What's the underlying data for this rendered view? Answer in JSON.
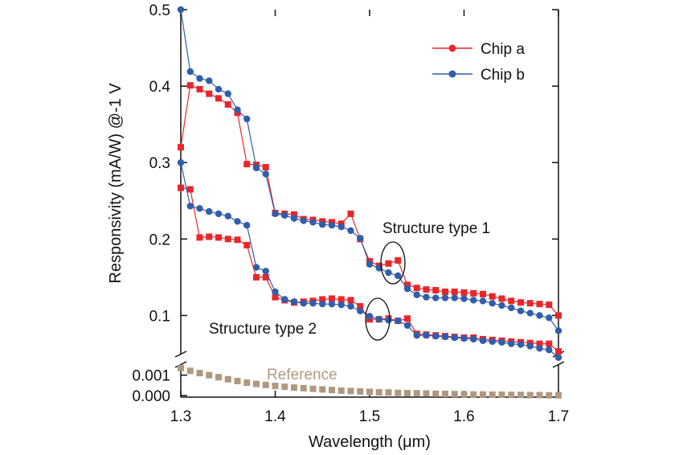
{
  "chart_data": {
    "type": "line",
    "xlabel": "Wavelength (μm)",
    "ylabel": "Responsivity (mA/W) @-1 V",
    "xlim": [
      1.3,
      1.7
    ],
    "ylim_upper": [
      0.05,
      0.5
    ],
    "ylim_lower": [
      0.0,
      0.0015
    ],
    "axis_break": "y",
    "x_ticks": [
      "1.3",
      "1.4",
      "1.5",
      "1.6",
      "1.7"
    ],
    "x_tick_values": [
      1.3,
      1.4,
      1.5,
      1.6,
      1.7
    ],
    "y_ticks_upper": [
      "0.1",
      "0.2",
      "0.3",
      "0.4",
      "0.5"
    ],
    "y_tick_values_upper": [
      0.1,
      0.2,
      0.3,
      0.4,
      0.5
    ],
    "y_ticks_lower": [
      "0.000",
      "0.001"
    ],
    "y_tick_values_lower": [
      0.0,
      0.001
    ],
    "legend_position": "top-right",
    "x": [
      1.3,
      1.31,
      1.32,
      1.33,
      1.34,
      1.35,
      1.36,
      1.37,
      1.38,
      1.39,
      1.4,
      1.41,
      1.42,
      1.43,
      1.44,
      1.45,
      1.46,
      1.47,
      1.48,
      1.49,
      1.5,
      1.51,
      1.52,
      1.53,
      1.54,
      1.55,
      1.56,
      1.57,
      1.58,
      1.59,
      1.6,
      1.61,
      1.62,
      1.63,
      1.64,
      1.65,
      1.66,
      1.67,
      1.68,
      1.69,
      1.7
    ],
    "series": [
      {
        "name": "Chip a",
        "group": "Structure type 1",
        "color": "#e8262a",
        "values": [
          0.32,
          0.401,
          0.396,
          0.39,
          0.384,
          0.376,
          0.365,
          0.298,
          0.297,
          0.294,
          0.234,
          0.233,
          0.232,
          0.226,
          0.225,
          0.223,
          0.222,
          0.22,
          0.233,
          0.2,
          0.171,
          0.165,
          0.168,
          0.172,
          0.14,
          0.136,
          0.134,
          0.133,
          0.131,
          0.131,
          0.13,
          0.129,
          0.128,
          0.125,
          0.122,
          0.119,
          0.117,
          0.116,
          0.115,
          0.114,
          0.1
        ]
      },
      {
        "name": "Chip b",
        "group": "Structure type 1",
        "color": "#2f5eab",
        "values": [
          0.5,
          0.419,
          0.41,
          0.407,
          0.396,
          0.39,
          0.369,
          0.357,
          0.293,
          0.285,
          0.233,
          0.231,
          0.227,
          0.224,
          0.222,
          0.219,
          0.218,
          0.216,
          0.211,
          0.201,
          0.167,
          0.162,
          0.156,
          0.152,
          0.135,
          0.127,
          0.124,
          0.123,
          0.123,
          0.123,
          0.122,
          0.12,
          0.119,
          0.116,
          0.113,
          0.11,
          0.106,
          0.103,
          0.1,
          0.097,
          0.08
        ]
      },
      {
        "name": "Chip a",
        "group": "Structure type 2",
        "color": "#e8262a",
        "values": [
          0.267,
          0.265,
          0.202,
          0.203,
          0.202,
          0.2,
          0.199,
          0.192,
          0.15,
          0.15,
          0.124,
          0.12,
          0.117,
          0.118,
          0.119,
          0.121,
          0.122,
          0.121,
          0.12,
          0.112,
          0.095,
          0.095,
          0.096,
          0.093,
          0.096,
          0.076,
          0.075,
          0.074,
          0.073,
          0.072,
          0.071,
          0.071,
          0.069,
          0.068,
          0.067,
          0.066,
          0.065,
          0.064,
          0.063,
          0.063,
          0.053
        ]
      },
      {
        "name": "Chip b",
        "group": "Structure type 2",
        "color": "#2f5eab",
        "values": [
          0.3,
          0.243,
          0.24,
          0.236,
          0.233,
          0.23,
          0.223,
          0.218,
          0.163,
          0.158,
          0.131,
          0.121,
          0.118,
          0.116,
          0.116,
          0.115,
          0.115,
          0.114,
          0.112,
          0.106,
          0.099,
          0.095,
          0.094,
          0.093,
          0.087,
          0.074,
          0.074,
          0.073,
          0.072,
          0.071,
          0.07,
          0.069,
          0.067,
          0.066,
          0.065,
          0.063,
          0.062,
          0.06,
          0.057,
          0.055,
          0.045
        ]
      },
      {
        "name": "Reference",
        "color": "#b09880",
        "values": [
          0.00135,
          0.00121,
          0.0011,
          0.001,
          0.0009,
          0.0008,
          0.00071,
          0.00063,
          0.00057,
          0.00052,
          0.00047,
          0.00043,
          0.00039,
          0.00036,
          0.00033,
          0.0003,
          0.00027,
          0.00024,
          0.00022,
          0.0002,
          0.00018,
          0.00016,
          0.00015,
          0.00013,
          0.00012,
          0.00011,
          0.0001,
          9e-05,
          8e-05,
          7e-05,
          6e-05,
          5e-05,
          5e-05,
          4e-05,
          4e-05,
          3e-05,
          3e-05,
          2e-05,
          2e-05,
          1e-05,
          1e-05
        ]
      }
    ],
    "legend": [
      {
        "label": "Chip a",
        "color": "#e8262a",
        "marker": "circle"
      },
      {
        "label": "Chip b",
        "color": "#2f5eab",
        "marker": "circle"
      }
    ],
    "annotations": {
      "structure_1": "Structure type 1",
      "structure_2": "Structure type 2",
      "reference": "Reference"
    }
  }
}
